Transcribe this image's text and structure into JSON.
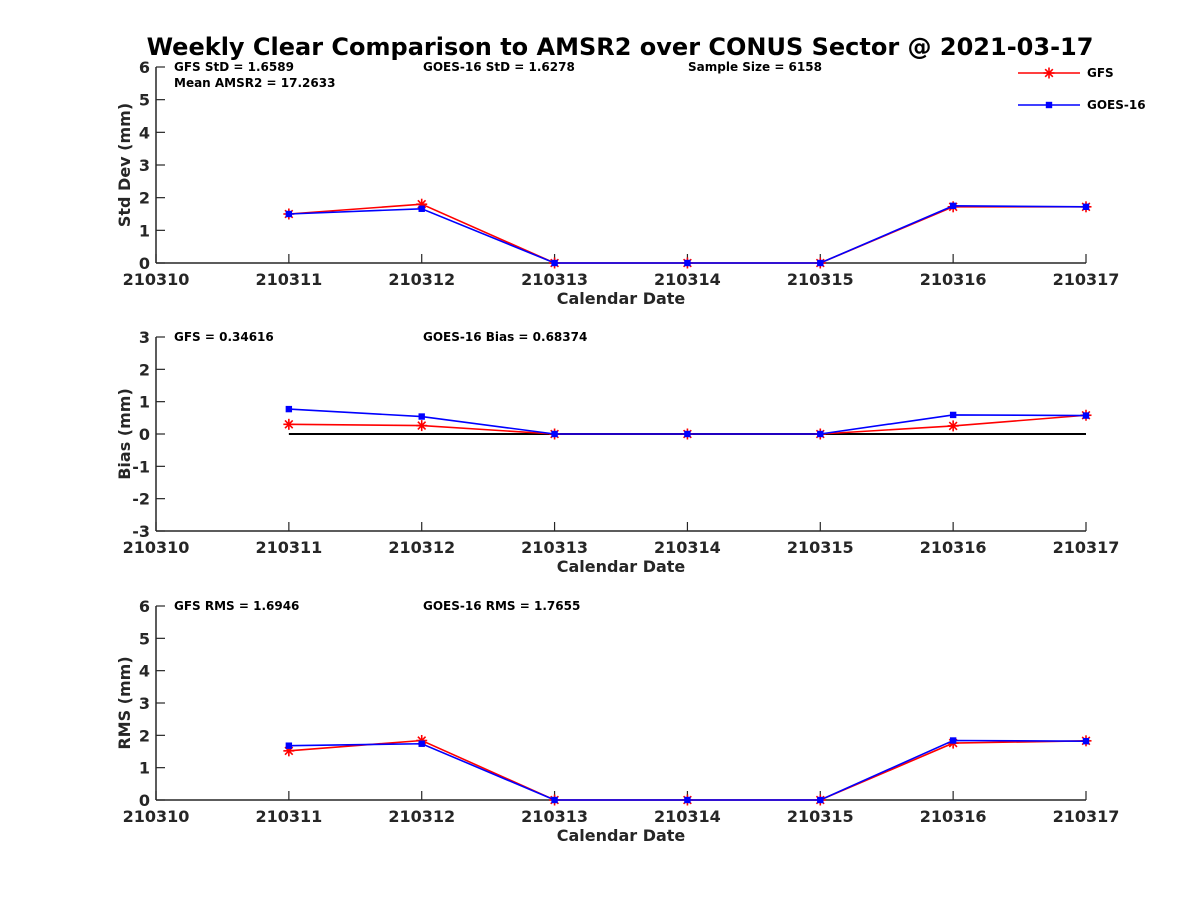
{
  "title": "Weekly Clear Comparison to AMSR2 over CONUS Sector @ 2021-03-17",
  "colors": {
    "GFS": "#ff0000",
    "GOES-16": "#0000ff",
    "zero_line": "#000000",
    "axis": "#262626"
  },
  "legend": {
    "placement": "top-right",
    "entries": [
      {
        "name": "GFS",
        "color": "#ff0000",
        "marker": "asterisk"
      },
      {
        "name": "GOES-16",
        "color": "#0000ff",
        "marker": "square"
      }
    ]
  },
  "chart_data": [
    {
      "type": "line",
      "xlabel": "Calendar Date",
      "ylabel": "Std Dev (mm)",
      "ylim": [
        0,
        6
      ],
      "yticks": [
        0,
        1,
        2,
        3,
        4,
        5,
        6
      ],
      "grid": false,
      "x": [
        "210310",
        "210311",
        "210312",
        "210313",
        "210314",
        "210315",
        "210316",
        "210317"
      ],
      "series": [
        {
          "name": "GFS",
          "color": "#ff0000",
          "marker": "asterisk",
          "values": [
            null,
            1.5,
            1.8,
            0,
            0,
            0,
            1.72,
            1.72
          ]
        },
        {
          "name": "GOES-16",
          "color": "#0000ff",
          "marker": "square",
          "values": [
            null,
            1.5,
            1.66,
            0,
            0,
            0,
            1.75,
            1.72
          ]
        }
      ],
      "annotations": [
        {
          "slot": "a",
          "text": "GFS StD = 1.6589"
        },
        {
          "slot": "b",
          "text": "Mean AMSR2 = 17.2633"
        },
        {
          "slot": "c",
          "text": "GOES-16 StD = 1.6278"
        },
        {
          "slot": "d",
          "text": "Sample Size = 6158"
        }
      ],
      "zero_line": false
    },
    {
      "type": "line",
      "xlabel": "Calendar Date",
      "ylabel": "Bias (mm)",
      "ylim": [
        -3,
        3
      ],
      "yticks": [
        -3,
        -2,
        -1,
        0,
        1,
        2,
        3
      ],
      "grid": false,
      "x": [
        "210310",
        "210311",
        "210312",
        "210313",
        "210314",
        "210315",
        "210316",
        "210317"
      ],
      "series": [
        {
          "name": "GFS",
          "color": "#ff0000",
          "marker": "asterisk",
          "values": [
            null,
            0.3,
            0.26,
            0,
            0,
            0,
            0.25,
            0.58
          ]
        },
        {
          "name": "GOES-16",
          "color": "#0000ff",
          "marker": "square",
          "values": [
            null,
            0.77,
            0.54,
            0,
            0,
            0,
            0.59,
            0.57
          ]
        }
      ],
      "annotations": [
        {
          "slot": "a",
          "text": "GFS = 0.34616"
        },
        {
          "slot": "c",
          "text": "GOES-16 Bias  = 0.68374"
        }
      ],
      "zero_line": true
    },
    {
      "type": "line",
      "xlabel": "Calendar Date",
      "ylabel": "RMS (mm)",
      "ylim": [
        0,
        6
      ],
      "yticks": [
        0,
        1,
        2,
        3,
        4,
        5,
        6
      ],
      "grid": false,
      "x": [
        "210310",
        "210311",
        "210312",
        "210313",
        "210314",
        "210315",
        "210316",
        "210317"
      ],
      "series": [
        {
          "name": "GFS",
          "color": "#ff0000",
          "marker": "asterisk",
          "values": [
            null,
            1.52,
            1.84,
            0,
            0,
            0,
            1.76,
            1.83
          ]
        },
        {
          "name": "GOES-16",
          "color": "#0000ff",
          "marker": "square",
          "values": [
            null,
            1.68,
            1.74,
            0,
            0,
            0,
            1.84,
            1.82
          ]
        }
      ],
      "annotations": [
        {
          "slot": "a",
          "text": "GFS RMS = 1.6946"
        },
        {
          "slot": "c",
          "text": "GOES-16 RMS = 1.7655"
        }
      ],
      "zero_line": false
    }
  ]
}
